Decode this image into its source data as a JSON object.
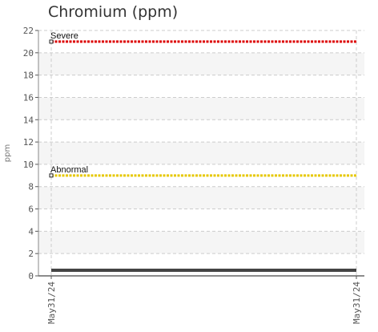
{
  "chart_data": {
    "type": "line",
    "title": "Chromium (ppm)",
    "ylabel": "ppm",
    "xlabel": "",
    "ylim": [
      0,
      22
    ],
    "y_ticks": [
      0,
      2,
      4,
      6,
      8,
      10,
      12,
      14,
      16,
      18,
      20,
      22
    ],
    "x_tick_labels": [
      "May31/24",
      "May31/24"
    ],
    "grid": true,
    "series": [
      {
        "values": [
          0.5,
          0.5
        ],
        "color": "#444444"
      }
    ],
    "thresholds": [
      {
        "label": "Severe",
        "value": 21,
        "color": "#dd0000"
      },
      {
        "label": "Abnormal",
        "value": 9,
        "color": "#e6c800"
      }
    ]
  }
}
